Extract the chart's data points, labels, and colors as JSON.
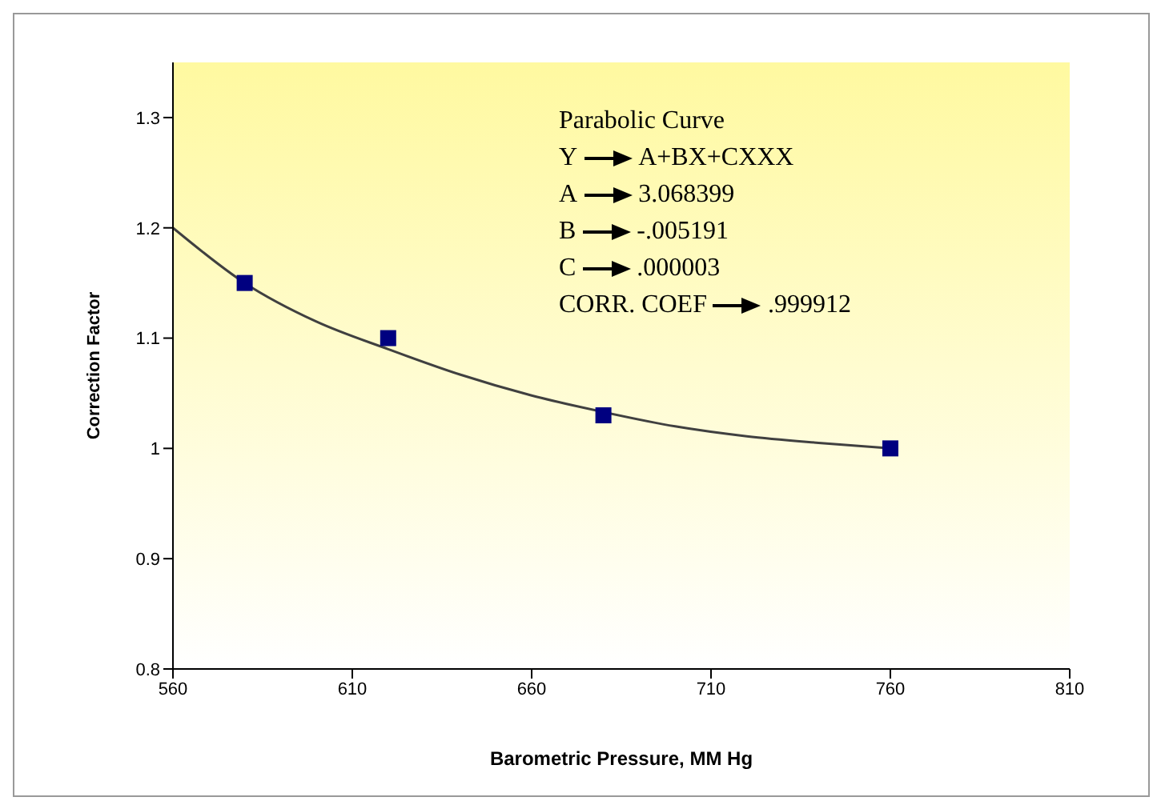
{
  "chart_data": {
    "type": "scatter",
    "xlabel": "Barometric Pressure, MM Hg",
    "ylabel": "Correction Factor",
    "x": [
      580,
      620,
      680,
      760
    ],
    "series": [
      {
        "type": "scatter",
        "color": "#000080",
        "marker": "square",
        "values": [
          1.15,
          1.1,
          1.03,
          1.0
        ]
      },
      {
        "type": "line",
        "color": "#404040",
        "marker": "none",
        "line_style": "solid",
        "x": [
          560,
          580,
          600,
          620,
          640,
          660,
          680,
          700,
          720,
          740,
          760
        ],
        "values": [
          1.2,
          1.15,
          1.115,
          1.09,
          1.067,
          1.048,
          1.033,
          1.02,
          1.011,
          1.005,
          1.0
        ]
      }
    ],
    "xlim": [
      560,
      810
    ],
    "xticks": [
      560,
      610,
      660,
      710,
      760,
      810
    ],
    "ylim": [
      0.8,
      1.35
    ],
    "yticks": [
      0.8,
      0.9,
      1,
      1.1,
      1.2,
      1.3
    ],
    "grid": false,
    "legend": false,
    "annotations": [
      "Parabolic Curve",
      "Y",
      "A+BX+CXXX",
      "A",
      "3.068399",
      "B",
      "-.005191",
      "C",
      ".000003",
      "CORR. COEF",
      ".999912"
    ]
  }
}
